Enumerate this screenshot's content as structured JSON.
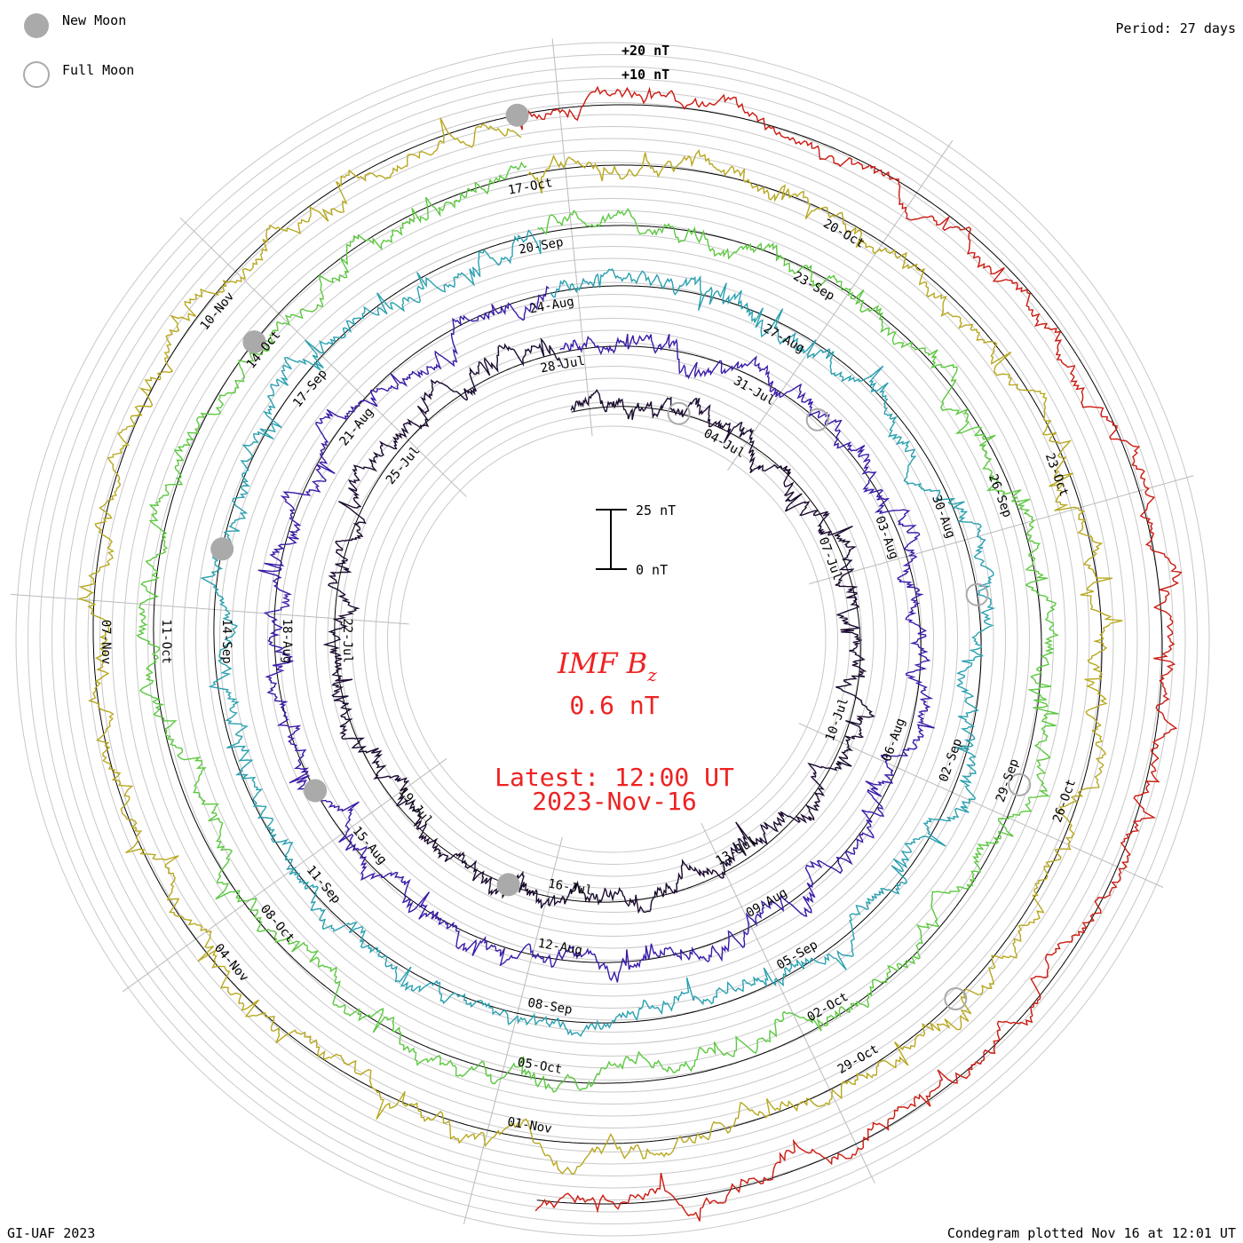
{
  "legend": {
    "new_moon_label": "New Moon",
    "full_moon_label": "Full Moon",
    "new_moon_color": "#aaaaaa",
    "full_moon_color": "#aaaaaa"
  },
  "header": {
    "period_label": "Period: 27 days"
  },
  "footer": {
    "credit": "GI-UAF 2023",
    "plotted": "Condegram plotted Nov 16 at 12:01 UT"
  },
  "center": {
    "title_main": "IMF B",
    "title_sub": "z",
    "current_value": "0.6 nT",
    "latest_label": "Latest: 12:00 UT",
    "latest_date": "2023-Nov-16",
    "scale_top": "25 nT",
    "scale_bottom": "0 nT"
  },
  "chart_data": {
    "type": "condegram",
    "title": "IMF Bz",
    "units": "nT",
    "period_days": 27,
    "reference_labels": [
      "+20 nT",
      "+10 nT"
    ],
    "scale_bar": {
      "min": 0,
      "max": 25,
      "units": "nT"
    },
    "rotations": [
      {
        "start": "2023-07-01",
        "color": "#1a0a2e",
        "ticks": [
          "04-Jul",
          "07-Jul",
          "10-Jul",
          "13-Jul",
          "16-Jul",
          "19-Jul",
          "22-Jul",
          "25-Jul",
          "28-Jul"
        ]
      },
      {
        "start": "2023-07-28",
        "color": "#3a1aa8",
        "ticks": [
          "31-Jul",
          "03-Aug",
          "06-Aug",
          "09-Aug",
          "12-Aug",
          "15-Aug",
          "18-Aug",
          "21-Aug",
          "24-Aug"
        ]
      },
      {
        "start": "2023-08-24",
        "color": "#2aa0b0",
        "ticks": [
          "27-Aug",
          "30-Aug",
          "02-Sep",
          "05-Sep",
          "08-Sep",
          "11-Sep",
          "14-Sep",
          "17-Sep",
          "20-Sep"
        ]
      },
      {
        "start": "2023-09-20",
        "color": "#5cc840",
        "ticks": [
          "23-Sep",
          "26-Sep",
          "29-Sep",
          "02-Oct",
          "05-Oct",
          "08-Oct",
          "11-Oct",
          "14-Oct",
          "17-Oct"
        ]
      },
      {
        "start": "2023-10-17",
        "color": "#b8a820",
        "ticks": [
          "20-Oct",
          "23-Oct",
          "26-Oct",
          "29-Oct",
          "01-Nov",
          "04-Nov",
          "07-Nov",
          "10-Nov"
        ]
      },
      {
        "start": "2023-11-13",
        "color": "#cc1a10",
        "ticks": []
      }
    ],
    "moon_phases": {
      "new": [
        "2023-07-17",
        "2023-08-16",
        "2023-09-15",
        "2023-10-14",
        "2023-11-13"
      ],
      "full": [
        "2023-07-03",
        "2023-08-01",
        "2023-08-31",
        "2023-09-29",
        "2023-10-28"
      ]
    },
    "latest_value": 0.6,
    "latest_time": "2023-11-16 12:00 UT"
  }
}
